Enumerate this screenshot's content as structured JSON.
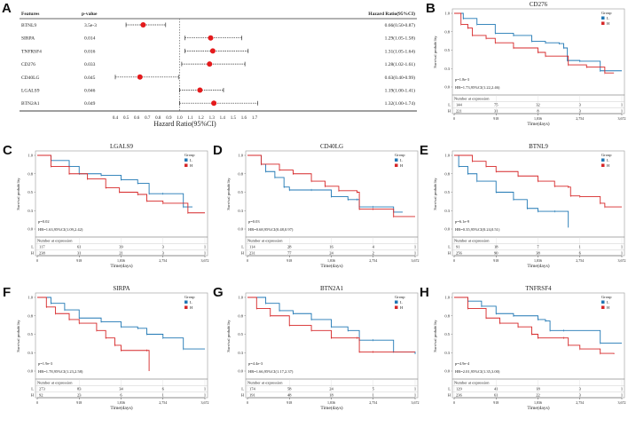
{
  "panel_letters": [
    "A",
    "B",
    "C",
    "D",
    "E",
    "F",
    "G",
    "H"
  ],
  "colors": {
    "low": "#1f77b4",
    "high": "#d62728",
    "dot": "#e41a1c"
  },
  "chart_data": [
    {
      "type": "forest",
      "headers": {
        "features": "Features",
        "pvalue": "p-value",
        "hr": "Hazard Ratio(95%CI)"
      },
      "xlabel": "Hazard Ratio(95%CI)",
      "xlim": [
        0.4,
        1.7
      ],
      "ticks": [
        "0.4",
        "0.5",
        "0.6",
        "0.7",
        "0.8",
        "0.9",
        "1.0",
        "1.1",
        "1.2",
        "1.3",
        "1.4",
        "1.5",
        "1.6",
        "1.7"
      ],
      "reference": 1.0,
      "rows": [
        {
          "feature": "BTNL9",
          "p": "3.5e-3",
          "hr_text": "0.66(0.50-0.87)",
          "hr": 0.66,
          "lo": 0.5,
          "hi": 0.87
        },
        {
          "feature": "SIRPA",
          "p": "0.014",
          "hr_text": "1.29(1.05-1.58)",
          "hr": 1.29,
          "lo": 1.05,
          "hi": 1.58
        },
        {
          "feature": "TNFRSF4",
          "p": "0.016",
          "hr_text": "1.31(1.05-1.64)",
          "hr": 1.31,
          "lo": 1.05,
          "hi": 1.64
        },
        {
          "feature": "CD276",
          "p": "0.033",
          "hr_text": "1.28(1.02-1.61)",
          "hr": 1.28,
          "lo": 1.02,
          "hi": 1.61
        },
        {
          "feature": "CD40LG",
          "p": "0.045",
          "hr_text": "0.63(0.40-0.99)",
          "hr": 0.63,
          "lo": 0.4,
          "hi": 0.99
        },
        {
          "feature": "LGALS9",
          "p": "0.046",
          "hr_text": "1.19(1.00-1.41)",
          "hr": 1.19,
          "lo": 1.0,
          "hi": 1.41
        },
        {
          "feature": "BTN2A1",
          "p": "0.049",
          "hr_text": "1.32(1.00-1.74)",
          "hr": 1.32,
          "lo": 1.0,
          "hi": 1.74
        }
      ]
    },
    {
      "type": "line",
      "step": true,
      "title": "CD276",
      "p": "p=1.8e-3",
      "hr": "HR=1.73,95%CI(1.22,2.46)",
      "L": [
        [
          0,
          1
        ],
        [
          200,
          0.93
        ],
        [
          500,
          0.85
        ],
        [
          900,
          0.73
        ],
        [
          1300,
          0.7
        ],
        [
          1700,
          0.62
        ],
        [
          2000,
          0.6
        ],
        [
          2300,
          0.59
        ],
        [
          2400,
          0.53
        ],
        [
          2480,
          0.36
        ],
        [
          2754,
          0.35
        ],
        [
          3200,
          0.22
        ],
        [
          3672,
          0.22
        ]
      ],
      "H": [
        [
          0,
          1
        ],
        [
          150,
          0.85
        ],
        [
          300,
          0.8
        ],
        [
          400,
          0.7
        ],
        [
          700,
          0.66
        ],
        [
          900,
          0.6
        ],
        [
          1300,
          0.53
        ],
        [
          1836,
          0.47
        ],
        [
          2000,
          0.42
        ],
        [
          2500,
          0.3
        ],
        [
          2900,
          0.27
        ],
        [
          3300,
          0.19
        ],
        [
          3500,
          0.19
        ]
      ],
      "risk_L": [
        "144",
        "75",
        "32",
        "3",
        "1"
      ],
      "risk_H": [
        "221",
        "31",
        "8",
        "3",
        "1"
      ]
    },
    {
      "type": "line",
      "step": true,
      "title": "LGALS9",
      "p": "p=0.02",
      "hr": "HR=1.63,95%CI(1.09,2.42)",
      "L": [
        [
          0,
          1
        ],
        [
          300,
          0.93
        ],
        [
          700,
          0.85
        ],
        [
          918,
          0.75
        ],
        [
          1400,
          0.73
        ],
        [
          1836,
          0.67
        ],
        [
          2200,
          0.62
        ],
        [
          2450,
          0.48
        ],
        [
          2754,
          0.48
        ],
        [
          3200,
          0.3
        ],
        [
          3400,
          0.3
        ]
      ],
      "H": [
        [
          0,
          1
        ],
        [
          300,
          0.85
        ],
        [
          700,
          0.75
        ],
        [
          1100,
          0.68
        ],
        [
          1500,
          0.56
        ],
        [
          1800,
          0.5
        ],
        [
          2200,
          0.47
        ],
        [
          2400,
          0.38
        ],
        [
          2754,
          0.35
        ],
        [
          3300,
          0.22
        ],
        [
          3672,
          0.22
        ]
      ],
      "risk_L": [
        "117",
        "61",
        "39",
        "3",
        "1"
      ],
      "risk_H": [
        "238",
        "31",
        "21",
        "3",
        "1"
      ]
    },
    {
      "type": "line",
      "step": true,
      "title": "CD40LG",
      "p": "p=0.03",
      "hr": "HR=0.68,95%CI(0.48,0.97)",
      "L": [
        [
          0,
          1
        ],
        [
          300,
          0.88
        ],
        [
          400,
          0.78
        ],
        [
          600,
          0.7
        ],
        [
          800,
          0.57
        ],
        [
          918,
          0.53
        ],
        [
          1400,
          0.53
        ],
        [
          1836,
          0.44
        ],
        [
          2200,
          0.4
        ],
        [
          2400,
          0.4
        ],
        [
          2450,
          0.3
        ],
        [
          2754,
          0.3
        ],
        [
          3200,
          0.23
        ],
        [
          3400,
          0.23
        ]
      ],
      "H": [
        [
          0,
          1
        ],
        [
          300,
          0.88
        ],
        [
          700,
          0.8
        ],
        [
          1000,
          0.75
        ],
        [
          1400,
          0.65
        ],
        [
          1700,
          0.58
        ],
        [
          2000,
          0.52
        ],
        [
          2400,
          0.5
        ],
        [
          2450,
          0.27
        ],
        [
          2754,
          0.27
        ],
        [
          3200,
          0.17
        ],
        [
          3672,
          0.17
        ]
      ],
      "risk_L": [
        "114",
        "28",
        "16",
        "4",
        "1"
      ],
      "risk_H": [
        "231",
        "77",
        "24",
        "2",
        "1"
      ]
    },
    {
      "type": "line",
      "step": true,
      "title": "BTNL9",
      "p": "p=6.1e-9",
      "hr": "HR=0.35,95%CI(0.24,0.51)",
      "L": [
        [
          0,
          1
        ],
        [
          100,
          0.85
        ],
        [
          300,
          0.75
        ],
        [
          500,
          0.65
        ],
        [
          918,
          0.5
        ],
        [
          1300,
          0.4
        ],
        [
          1600,
          0.28
        ],
        [
          1836,
          0.24
        ],
        [
          2200,
          0.24
        ],
        [
          2500,
          0.02
        ]
      ],
      "H": [
        [
          0,
          1
        ],
        [
          400,
          0.92
        ],
        [
          700,
          0.85
        ],
        [
          918,
          0.78
        ],
        [
          1400,
          0.72
        ],
        [
          1836,
          0.65
        ],
        [
          2200,
          0.58
        ],
        [
          2500,
          0.57
        ],
        [
          2550,
          0.45
        ],
        [
          2754,
          0.44
        ],
        [
          3200,
          0.35
        ],
        [
          3300,
          0.3
        ],
        [
          3672,
          0.3
        ]
      ],
      "risk_L": [
        "91",
        "18",
        "7",
        "1",
        "1"
      ],
      "risk_H": [
        "256",
        "90",
        "38",
        "6",
        "1"
      ]
    },
    {
      "type": "line",
      "step": true,
      "title": "SIRPA",
      "p": "p=1.9e-3",
      "hr": "HR=1.78,95%CI(1.23,2.58)",
      "L": [
        [
          0,
          1
        ],
        [
          300,
          0.92
        ],
        [
          600,
          0.83
        ],
        [
          918,
          0.72
        ],
        [
          1400,
          0.67
        ],
        [
          1836,
          0.6
        ],
        [
          2200,
          0.58
        ],
        [
          2400,
          0.5
        ],
        [
          2754,
          0.45
        ],
        [
          3200,
          0.3
        ],
        [
          3672,
          0.3
        ]
      ],
      "H": [
        [
          0,
          1
        ],
        [
          200,
          0.87
        ],
        [
          400,
          0.78
        ],
        [
          700,
          0.7
        ],
        [
          918,
          0.65
        ],
        [
          1300,
          0.55
        ],
        [
          1500,
          0.45
        ],
        [
          1700,
          0.35
        ],
        [
          1836,
          0.28
        ],
        [
          2400,
          0.28
        ],
        [
          2450,
          0.0
        ]
      ],
      "risk_L": [
        "273",
        "83",
        "34",
        "6",
        "1"
      ],
      "risk_H": [
        "92",
        "23",
        "6",
        "1",
        "1"
      ]
    },
    {
      "type": "line",
      "step": true,
      "title": "BTN2A1",
      "p": "p=4.4e-3",
      "hr": "HR=1.66,95%CI(1.17,2.37)",
      "L": [
        [
          0,
          1
        ],
        [
          400,
          0.92
        ],
        [
          700,
          0.82
        ],
        [
          1000,
          0.78
        ],
        [
          1400,
          0.7
        ],
        [
          1836,
          0.6
        ],
        [
          2200,
          0.55
        ],
        [
          2450,
          0.42
        ],
        [
          2754,
          0.42
        ],
        [
          3200,
          0.26
        ],
        [
          3672,
          0.23
        ]
      ],
      "H": [
        [
          0,
          1
        ],
        [
          200,
          0.85
        ],
        [
          500,
          0.75
        ],
        [
          918,
          0.62
        ],
        [
          1400,
          0.55
        ],
        [
          1836,
          0.45
        ],
        [
          2400,
          0.45
        ],
        [
          2450,
          0.26
        ],
        [
          2754,
          0.26
        ],
        [
          3672,
          0.26
        ]
      ],
      "risk_L": [
        "174",
        "58",
        "24",
        "5",
        "1"
      ],
      "risk_H": [
        "191",
        "48",
        "18",
        "1",
        "1"
      ]
    },
    {
      "type": "line",
      "step": true,
      "title": "TNFRSF4",
      "p": "p=4.9e-4",
      "hr": "HR=2.01,95%CI(1.35,3.00)",
      "L": [
        [
          0,
          1
        ],
        [
          300,
          0.95
        ],
        [
          600,
          0.88
        ],
        [
          918,
          0.78
        ],
        [
          1300,
          0.75
        ],
        [
          1836,
          0.7
        ],
        [
          2000,
          0.68
        ],
        [
          2100,
          0.55
        ],
        [
          2400,
          0.55
        ],
        [
          3200,
          0.38
        ],
        [
          3672,
          0.38
        ]
      ],
      "H": [
        [
          0,
          1
        ],
        [
          300,
          0.85
        ],
        [
          700,
          0.72
        ],
        [
          1000,
          0.65
        ],
        [
          1400,
          0.6
        ],
        [
          1700,
          0.5
        ],
        [
          1836,
          0.45
        ],
        [
          2400,
          0.45
        ],
        [
          2500,
          0.35
        ],
        [
          2754,
          0.3
        ],
        [
          3200,
          0.24
        ],
        [
          3500,
          0.23
        ]
      ],
      "risk_L": [
        "129",
        "41",
        "18",
        "3",
        "1"
      ],
      "risk_H": [
        "236",
        "61",
        "22",
        "3",
        "1"
      ]
    }
  ],
  "km_common": {
    "ylabel": "Survival probability",
    "xlabel": "Time(days)",
    "yticks": [
      "0.0",
      "0.3",
      "0.5",
      "0.8",
      "1.0"
    ],
    "xticks": [
      "0",
      "918",
      "1,836",
      "2,754",
      "3,672"
    ],
    "xticks_values": [
      0,
      918,
      1836,
      2754,
      3672
    ],
    "xlim": [
      0,
      3672
    ],
    "ylim": [
      0,
      1
    ],
    "legend_title": "Group",
    "legend_low": "L",
    "legend_high": "H",
    "legend_position": "top-right",
    "risk_header": "Number at expression"
  }
}
